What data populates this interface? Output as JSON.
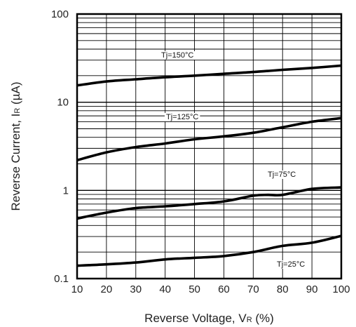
{
  "chart_data": {
    "type": "line",
    "title": "",
    "xlabel": {
      "main": "Reverse Voltage, V",
      "sub": "R",
      "unit": " (%)"
    },
    "ylabel": {
      "main": "Reverse Current, I",
      "sub": "R",
      "unit": " (µA)"
    },
    "xlim": [
      10,
      100
    ],
    "ylim": [
      0.1,
      100
    ],
    "yscale": "log",
    "grid": true,
    "legend": "none",
    "x_ticks": [
      "10",
      "20",
      "30",
      "40",
      "50",
      "60",
      "70",
      "80",
      "90",
      "100"
    ],
    "y_ticks": [
      "0.1",
      "1",
      "10",
      "100"
    ],
    "series": [
      {
        "name": "Tj=150°C",
        "x": [
          10,
          20,
          30,
          40,
          50,
          60,
          70,
          80,
          90,
          100
        ],
        "y": [
          15.5,
          17.2,
          18.2,
          19.2,
          20.0,
          21.0,
          22.0,
          23.3,
          24.5,
          26.0
        ],
        "color": "#000000"
      },
      {
        "name": "Tj=125°C",
        "x": [
          10,
          20,
          30,
          40,
          50,
          60,
          70,
          80,
          90,
          100
        ],
        "y": [
          2.2,
          2.7,
          3.1,
          3.4,
          3.8,
          4.1,
          4.5,
          5.2,
          6.0,
          6.6
        ],
        "color": "#000000"
      },
      {
        "name": "Tj=75°C",
        "x": [
          10,
          20,
          30,
          40,
          50,
          60,
          70,
          75,
          80,
          90,
          100
        ],
        "y": [
          0.48,
          0.56,
          0.63,
          0.66,
          0.7,
          0.75,
          0.87,
          0.89,
          0.89,
          1.04,
          1.08
        ],
        "color": "#000000"
      },
      {
        "name": "Tj=25°C",
        "x": [
          10,
          20,
          30,
          40,
          50,
          60,
          70,
          80,
          90,
          100
        ],
        "y": [
          0.14,
          0.145,
          0.152,
          0.165,
          0.172,
          0.18,
          0.2,
          0.235,
          0.255,
          0.305
        ],
        "color": "#000000"
      }
    ]
  }
}
